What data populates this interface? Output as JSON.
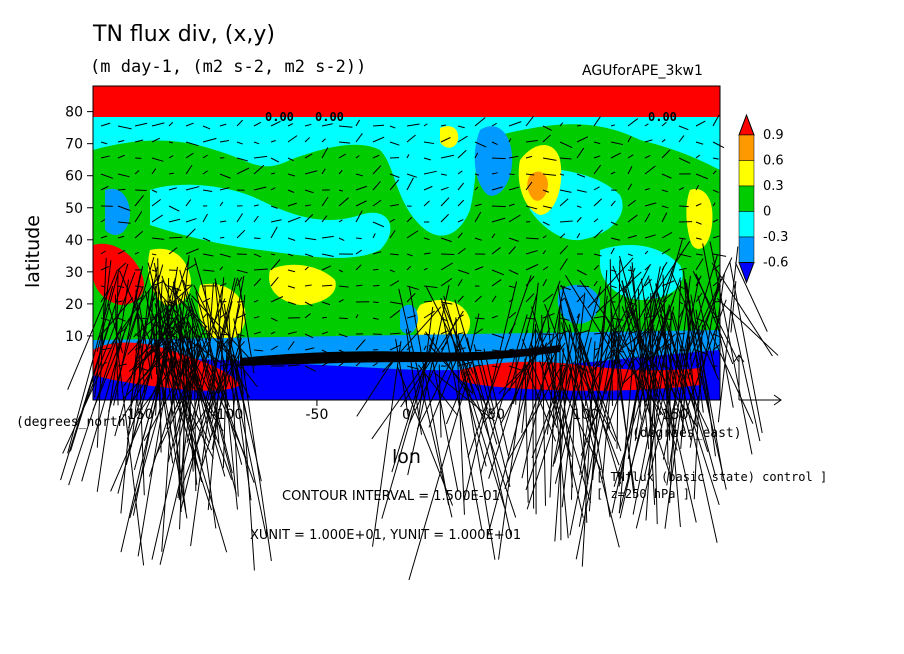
{
  "chart_data": {
    "type": "heatmap",
    "title": "TN flux div, (x,y)",
    "subtitle": "(m day-1, (m2 s-2, m2 s-2))",
    "run_name": "AGUforAPE_3kw1",
    "xlabel": "lon",
    "ylabel": "latitude",
    "x_unit": "(degrees_east)",
    "y_unit": "(degrees_north)",
    "xlim": [
      -175,
      175
    ],
    "ylim": [
      -10,
      88
    ],
    "x_ticks": [
      -150,
      -100,
      -50,
      0,
      50,
      100,
      150
    ],
    "y_ticks": [
      10,
      20,
      30,
      40,
      50,
      60,
      70,
      80
    ],
    "x_tick_labels": [
      "-150",
      "-100",
      "-50",
      "0",
      "50",
      "100",
      "150"
    ],
    "y_tick_labels": [
      "10",
      "20",
      "30",
      "40",
      "50",
      "60",
      "70",
      "80"
    ],
    "colorbar": {
      "labels": [
        "0.9",
        "0.6",
        "0.3",
        "0",
        "-0.3",
        "-0.6"
      ],
      "colors": [
        "#ff0000",
        "#ff9900",
        "#ffff00",
        "#00cc00",
        "#00ffff",
        "#0099ff",
        "#0000ff"
      ]
    },
    "contour_labels": [
      "0.00",
      "0.00",
      "0.00"
    ],
    "contour_interval_text": "CONTOUR INTERVAL = 1.500E-01",
    "vector_units_text": "XUNIT = 1.000E+01, YUNIT = 1.000E+01",
    "annotations": [
      "[ TNflux (basic state) control ]",
      "[ z=250 hPa ]"
    ],
    "grid": false
  }
}
